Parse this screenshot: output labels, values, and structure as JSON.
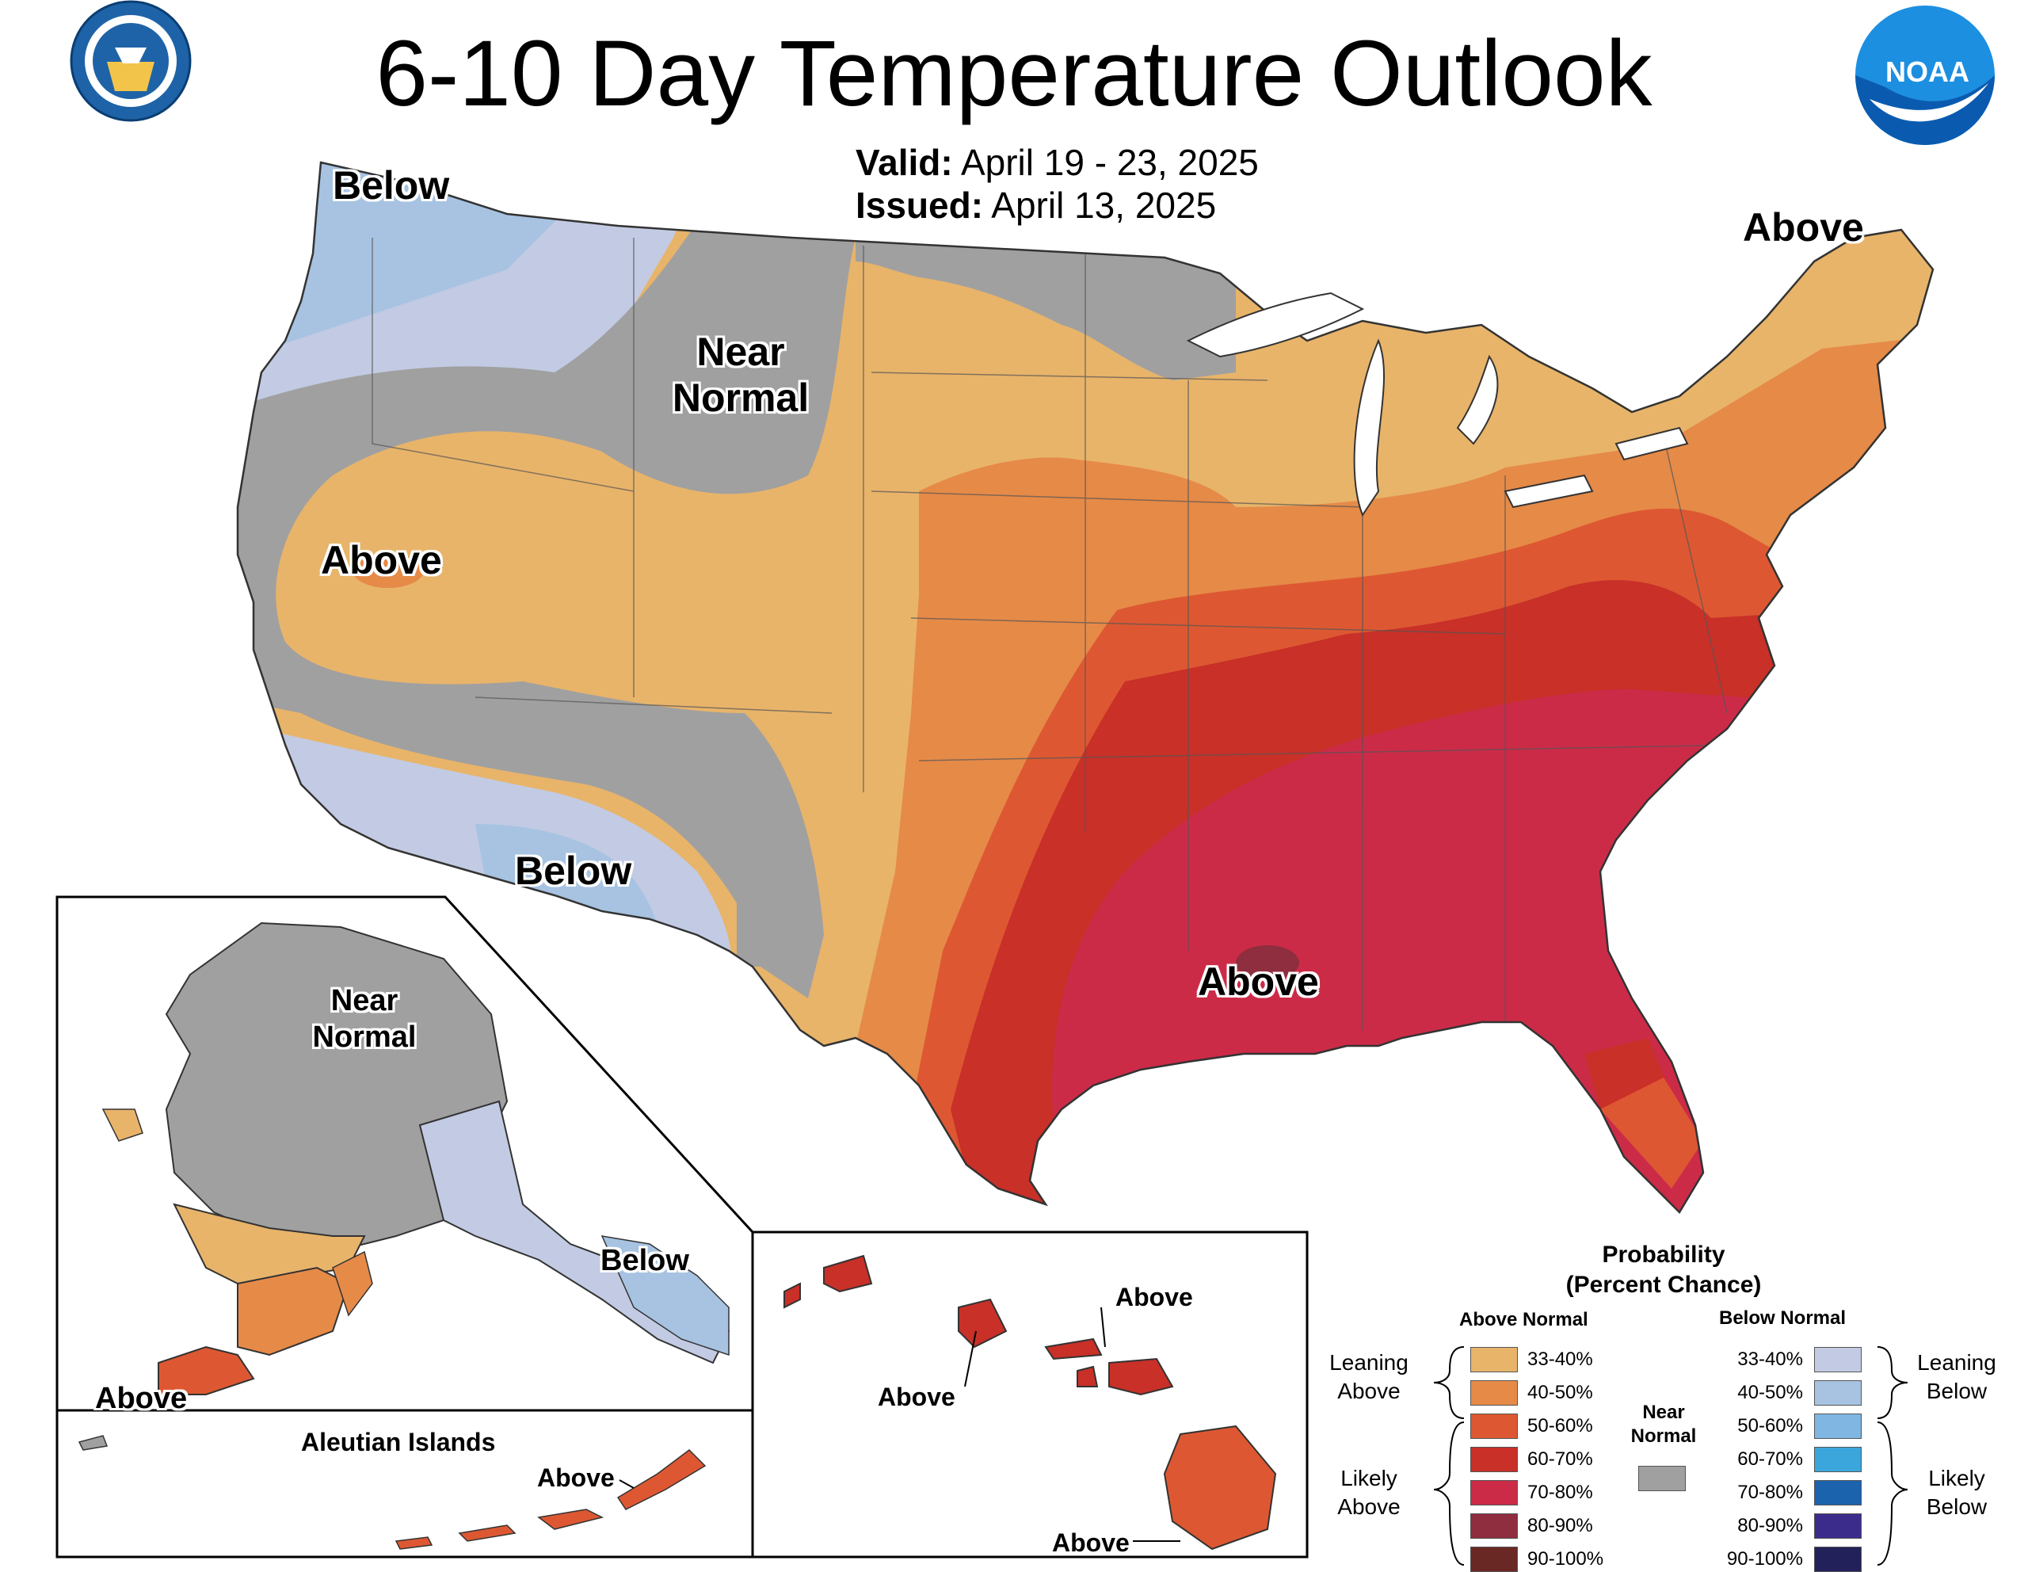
{
  "title": "6-10 Day Temperature Outlook",
  "valid": {
    "label": "Valid:",
    "value": "April 19 - 23, 2025"
  },
  "issued": {
    "label": "Issued:",
    "value": "April 13, 2025"
  },
  "logos": {
    "left": "dept-of-commerce-seal",
    "right": "noaa-logo",
    "noaa_text": "NOAA"
  },
  "map_labels": {
    "nw_below": "Below",
    "near_normal": "Near Normal",
    "ne_above": "Above",
    "west_above": "Above",
    "sw_below": "Below",
    "se_above": "Above"
  },
  "alaska": {
    "near_normal": "Near Normal",
    "below": "Below",
    "above": "Above"
  },
  "aleutians": {
    "title": "Aleutian Islands",
    "above": "Above"
  },
  "hawaii": {
    "above_1": "Above",
    "above_2": "Above",
    "above_3": "Above"
  },
  "legend": {
    "title_1": "Probability",
    "title_2": "(Percent Chance)",
    "above_header": "Above Normal",
    "below_header": "Below Normal",
    "near_normal_1": "Near",
    "near_normal_2": "Normal",
    "leaning_above_1": "Leaning",
    "leaning_above_2": "Above",
    "likely_above_1": "Likely",
    "likely_above_2": "Above",
    "leaning_below_1": "Leaning",
    "leaning_below_2": "Below",
    "likely_below_1": "Likely",
    "likely_below_2": "Below",
    "above_ranges": [
      "33-40%",
      "40-50%",
      "50-60%",
      "60-70%",
      "70-80%",
      "80-90%",
      "90-100%"
    ],
    "below_ranges": [
      "33-40%",
      "40-50%",
      "50-60%",
      "60-70%",
      "70-80%",
      "80-90%",
      "90-100%"
    ],
    "above_colors": [
      "#e8b46a",
      "#e68a48",
      "#dd5832",
      "#c83028",
      "#cc2b48",
      "#8e2e3e",
      "#6a2824"
    ],
    "below_colors": [
      "#c2cbe3",
      "#a7c3e1",
      "#7fb7e2",
      "#3ba6dc",
      "#1c63ad",
      "#3b2c8c",
      "#23215a"
    ],
    "near_normal_color": "#a0a0a0"
  }
}
